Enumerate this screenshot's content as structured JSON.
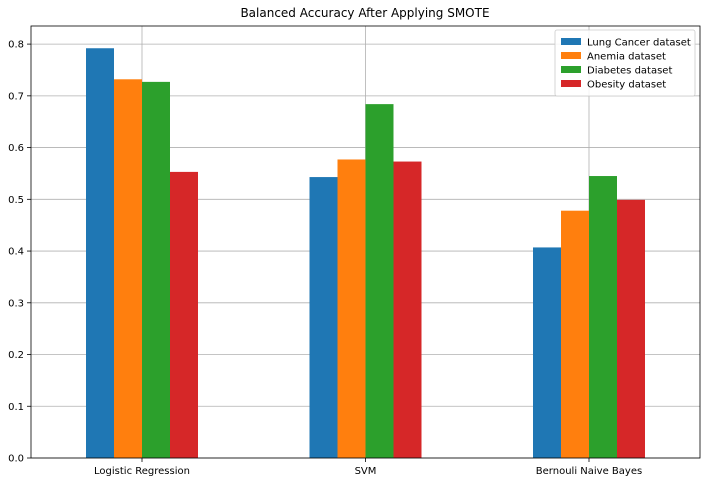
{
  "chart_data": {
    "type": "bar",
    "title": "Balanced Accuracy After Applying SMOTE",
    "xlabel": "",
    "ylabel": "",
    "categories": [
      "Logistic Regression",
      "SVM",
      "Bernouli Naive Bayes"
    ],
    "series": [
      {
        "name": "Lung Cancer dataset",
        "color": "#1f77b4",
        "values": [
          0.792,
          0.543,
          0.407
        ]
      },
      {
        "name": "Anemia dataset",
        "color": "#ff7f0e",
        "values": [
          0.732,
          0.577,
          0.478
        ]
      },
      {
        "name": "Diabetes dataset",
        "color": "#2ca02c",
        "values": [
          0.727,
          0.684,
          0.545
        ]
      },
      {
        "name": "Obesity dataset",
        "color": "#d62728",
        "values": [
          0.553,
          0.573,
          0.499
        ]
      }
    ],
    "ylim": [
      0,
      0.835
    ],
    "yticks": [
      0.0,
      0.1,
      0.2,
      0.3,
      0.4,
      0.5,
      0.6,
      0.7,
      0.8
    ],
    "ytick_labels": [
      "0.0",
      "0.1",
      "0.2",
      "0.3",
      "0.4",
      "0.5",
      "0.6",
      "0.7",
      "0.8"
    ],
    "grid": true,
    "legend_position": "top-right"
  }
}
